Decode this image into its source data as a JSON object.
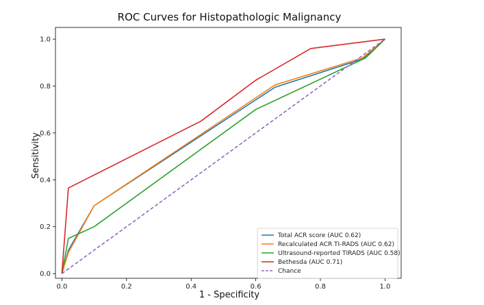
{
  "chart_data": {
    "type": "line",
    "title": "ROC Curves for Histopathologic Malignancy",
    "xlabel": "1 - Specificity",
    "ylabel": "Sensitivity",
    "xlim": [
      -0.02,
      1.05
    ],
    "ylim": [
      -0.02,
      1.05
    ],
    "xticks": [
      "0.0",
      "0.2",
      "0.4",
      "0.6",
      "0.8",
      "1.0"
    ],
    "yticks": [
      "0.0",
      "0.2",
      "0.4",
      "0.6",
      "0.8",
      "1.0"
    ],
    "grid": false,
    "legend_position": "lower-right",
    "series": [
      {
        "name": "Total ACR score (AUC 0.62)",
        "color": "#1f77b4",
        "dashed": false,
        "x": [
          0.0,
          0.02,
          0.1,
          0.66,
          0.93,
          1.0
        ],
        "y": [
          0.0,
          0.1,
          0.29,
          0.795,
          0.915,
          1.0
        ]
      },
      {
        "name": "Recalculated ACR TI-RADS (AUC 0.62)",
        "color": "#ff7f0e",
        "dashed": false,
        "x": [
          0.0,
          0.02,
          0.1,
          0.66,
          0.93,
          1.0
        ],
        "y": [
          0.0,
          0.09,
          0.29,
          0.805,
          0.92,
          1.0
        ]
      },
      {
        "name": "Ultrasound-reported TIRADS (AUC 0.58)",
        "color": "#2ca02c",
        "dashed": false,
        "x": [
          0.0,
          0.02,
          0.1,
          0.6,
          0.94,
          1.0
        ],
        "y": [
          0.0,
          0.15,
          0.2,
          0.7,
          0.92,
          1.0
        ]
      },
      {
        "name": "Bethesda (AUC 0.71)",
        "color": "#d62728",
        "dashed": false,
        "x": [
          0.0,
          0.02,
          0.43,
          0.6,
          0.77,
          1.0
        ],
        "y": [
          0.0,
          0.365,
          0.65,
          0.825,
          0.96,
          1.0
        ]
      },
      {
        "name": "Chance",
        "color": "#9467bd",
        "dashed": true,
        "x": [
          0.0,
          1.0
        ],
        "y": [
          0.0,
          1.0
        ]
      }
    ]
  }
}
